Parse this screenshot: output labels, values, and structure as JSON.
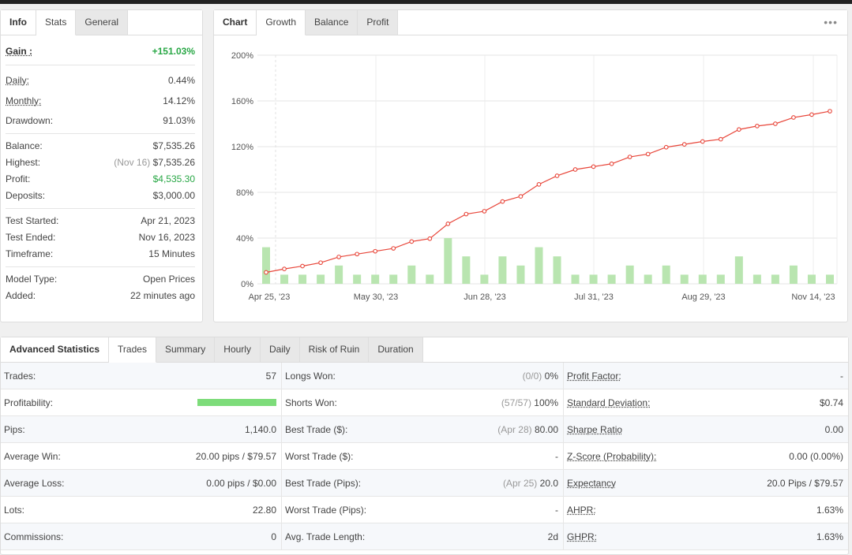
{
  "info": {
    "tabs": [
      {
        "label": "Info"
      },
      {
        "label": "Stats"
      },
      {
        "label": "General"
      }
    ],
    "gain": {
      "label": "Gain :",
      "value": "+151.03%"
    },
    "rows1": [
      {
        "label": "Daily:",
        "value": "0.44%"
      },
      {
        "label": "Monthly:",
        "value": "14.12%"
      },
      {
        "label": "Drawdown:",
        "value": "91.03%"
      }
    ],
    "balance": {
      "label": "Balance:",
      "value": "$7,535.26"
    },
    "highest": {
      "label": "Highest:",
      "note": "(Nov 16)",
      "value": "$7,535.26"
    },
    "profit": {
      "label": "Profit:",
      "value": "$4,535.30"
    },
    "deposits": {
      "label": "Deposits:",
      "value": "$3,000.00"
    },
    "rows3": [
      {
        "label": "Test Started:",
        "value": "Apr 21, 2023"
      },
      {
        "label": "Test Ended:",
        "value": "Nov 16, 2023"
      },
      {
        "label": "Timeframe:",
        "value": "15 Minutes"
      }
    ],
    "rows4": [
      {
        "label": "Model Type:",
        "value": "Open Prices"
      },
      {
        "label": "Added:",
        "value": "22 minutes ago"
      }
    ]
  },
  "chart_panel": {
    "tabs": [
      {
        "label": "Chart"
      },
      {
        "label": "Growth"
      },
      {
        "label": "Balance"
      },
      {
        "label": "Profit"
      }
    ],
    "menu_icon": "more-dots-icon",
    "menu_glyph": "•••"
  },
  "chart_data": {
    "type": "bar+line",
    "yticks": [
      "200%",
      "160%",
      "120%",
      "80%",
      "40%",
      "0%"
    ],
    "ylim": [
      0,
      200
    ],
    "xticks": [
      "Apr 25, '23",
      "May 30, '23",
      "Jun 28, '23",
      "Jul 31, '23",
      "Aug 29, '23",
      "Nov 14, '23"
    ],
    "line_color": "#e8463a",
    "bar_color": "#b9e5b0",
    "series": [
      {
        "type": "line",
        "values": [
          10,
          13,
          15.5,
          18.5,
          23.5,
          26,
          28.5,
          31,
          37,
          39.5,
          52.5,
          61,
          63.5,
          72,
          76.5,
          87,
          94.5,
          100,
          102.5,
          105,
          111,
          113.5,
          119.5,
          122,
          124.5,
          126.5,
          135,
          138,
          140,
          145.5,
          148,
          151
        ]
      },
      {
        "type": "bar",
        "values": [
          32,
          8,
          8,
          8,
          16,
          8,
          8,
          8,
          16,
          8,
          40,
          24,
          8,
          24,
          16,
          32,
          24,
          8,
          8,
          8,
          16,
          8,
          16,
          8,
          8,
          8,
          24,
          8,
          8,
          16,
          8,
          8
        ]
      }
    ]
  },
  "adv": {
    "tabs": [
      {
        "label": "Advanced Statistics"
      },
      {
        "label": "Trades"
      },
      {
        "label": "Summary"
      },
      {
        "label": "Hourly"
      },
      {
        "label": "Daily"
      },
      {
        "label": "Risk of Ruin"
      },
      {
        "label": "Duration"
      }
    ],
    "profitability_pct": 1.0,
    "col1": [
      {
        "label": "Trades:",
        "value": "57"
      },
      {
        "label": "Profitability:",
        "value": ""
      },
      {
        "label": "Pips:",
        "value": "1,140.0"
      },
      {
        "label": "Average Win:",
        "value": "20.00 pips / $79.57"
      },
      {
        "label": "Average Loss:",
        "value": "0.00 pips / $0.00"
      },
      {
        "label": "Lots:",
        "value": "22.80"
      },
      {
        "label": "Commissions:",
        "value": "0"
      }
    ],
    "col2": [
      {
        "label": "Longs Won:",
        "note": "(0/0)",
        "value": "0%"
      },
      {
        "label": "Shorts Won:",
        "note": "(57/57)",
        "value": "100%"
      },
      {
        "label": "Best Trade ($):",
        "note": "(Apr 28)",
        "value": "80.00"
      },
      {
        "label": "Worst Trade ($):",
        "note": "",
        "value": "-"
      },
      {
        "label": "Best Trade (Pips):",
        "note": "(Apr 25)",
        "value": "20.0"
      },
      {
        "label": "Worst Trade (Pips):",
        "note": "",
        "value": "-"
      },
      {
        "label": "Avg. Trade Length:",
        "note": "",
        "value": "2d"
      }
    ],
    "col3": [
      {
        "label": "Profit Factor:",
        "value": "-"
      },
      {
        "label": "Standard Deviation:",
        "value": "$0.74"
      },
      {
        "label": "Sharpe Ratio",
        "value": "0.00"
      },
      {
        "label": "Z-Score (Probability):",
        "value": "0.00 (0.00%)"
      },
      {
        "label": "Expectancy",
        "value": "20.0 Pips / $79.57"
      },
      {
        "label": "AHPR:",
        "value": "1.63%"
      },
      {
        "label": "GHPR:",
        "value": "1.63%"
      }
    ]
  }
}
